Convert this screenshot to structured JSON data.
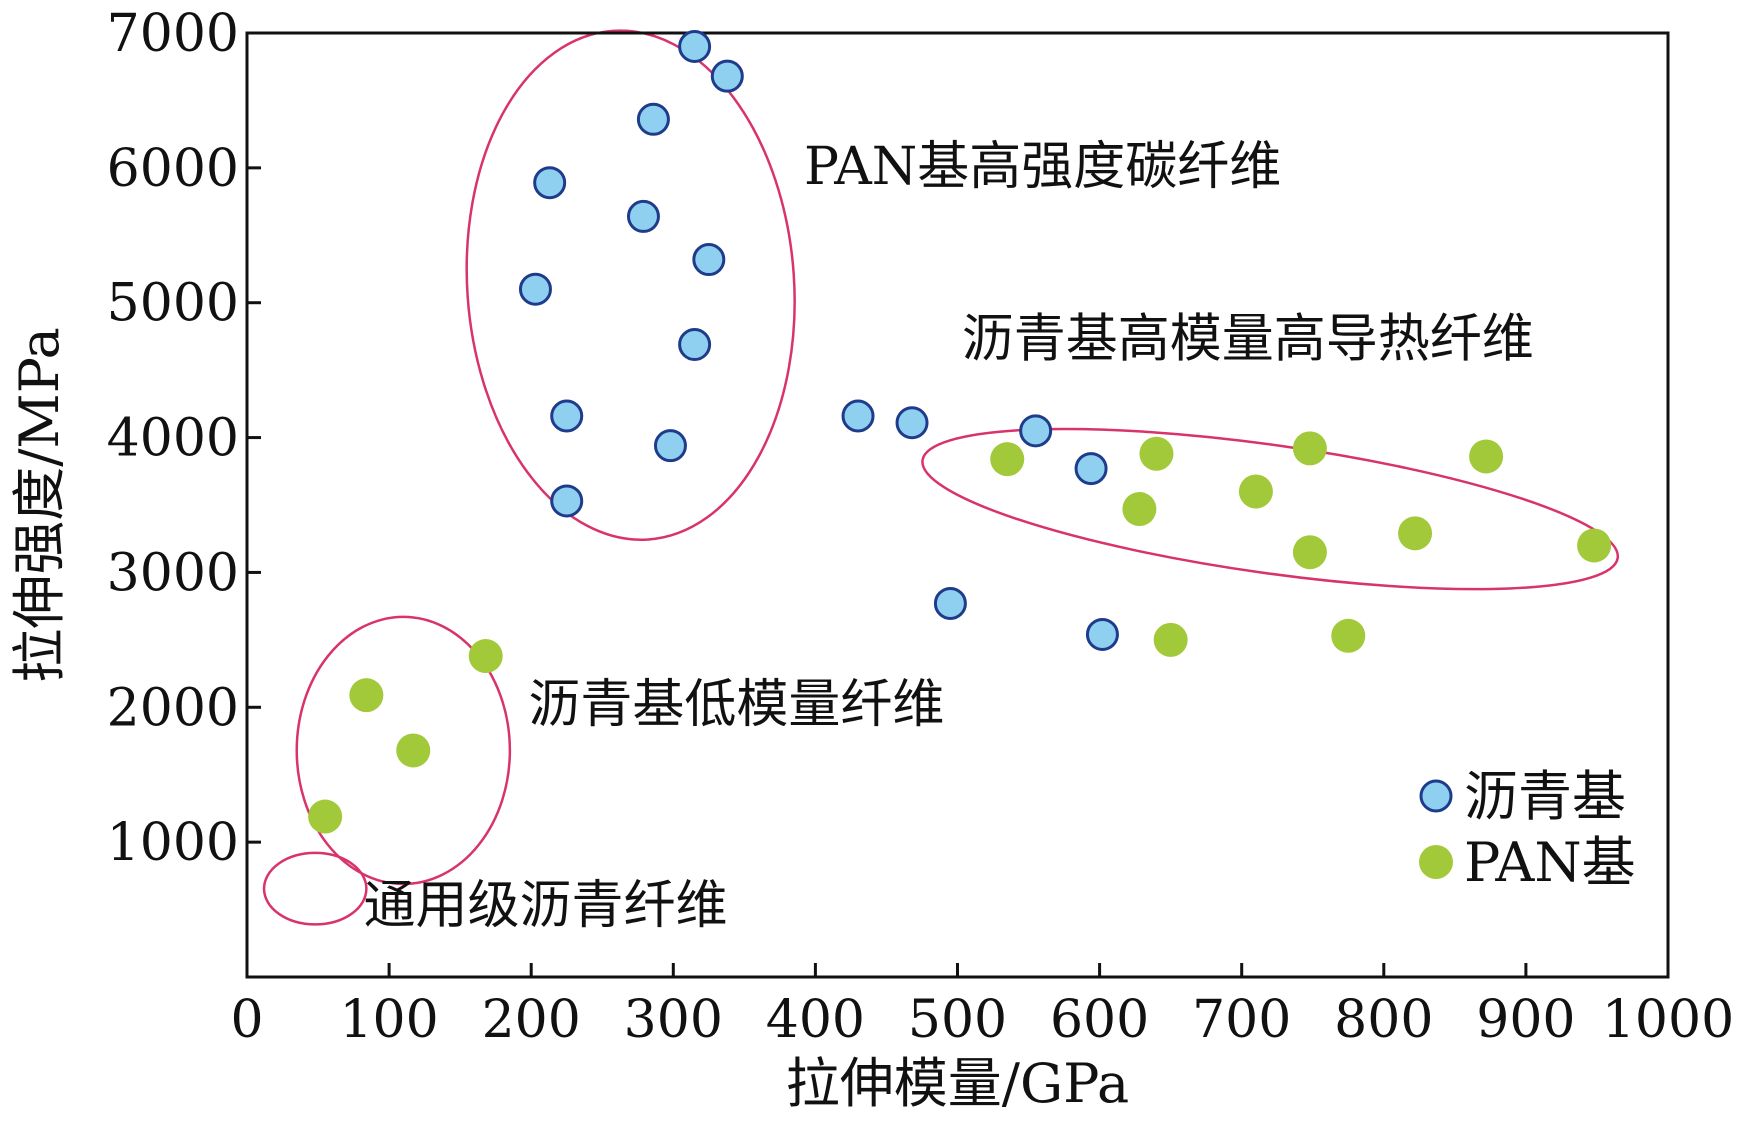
{
  "chart_data": {
    "type": "scatter",
    "xlabel": "拉伸模量/GPa",
    "ylabel": "拉伸强度/MPa",
    "xlim": [
      0,
      1000
    ],
    "ylim": [
      0,
      7000
    ],
    "xticks": [
      "0",
      "100",
      "200",
      "300",
      "400",
      "500",
      "600",
      "700",
      "800",
      "900",
      "1000"
    ],
    "yticks": [
      "1000",
      "2000",
      "3000",
      "4000",
      "5000",
      "6000",
      "7000"
    ],
    "grid": false,
    "legend_position": "bottom-right",
    "series": [
      {
        "name": "沥青基",
        "color": "#8fd0f0",
        "edge_color": "#1f3c8c",
        "marker": "circle-outlined",
        "points": [
          {
            "x": 315,
            "y": 6900
          },
          {
            "x": 338,
            "y": 6680
          },
          {
            "x": 286,
            "y": 6360
          },
          {
            "x": 213,
            "y": 5890
          },
          {
            "x": 279,
            "y": 5640
          },
          {
            "x": 325,
            "y": 5320
          },
          {
            "x": 203,
            "y": 5100
          },
          {
            "x": 315,
            "y": 4690
          },
          {
            "x": 225,
            "y": 4160
          },
          {
            "x": 298,
            "y": 3940
          },
          {
            "x": 225,
            "y": 3530
          },
          {
            "x": 430,
            "y": 4160
          },
          {
            "x": 468,
            "y": 4110
          },
          {
            "x": 555,
            "y": 4050
          },
          {
            "x": 594,
            "y": 3770
          },
          {
            "x": 495,
            "y": 2770
          },
          {
            "x": 602,
            "y": 2540
          }
        ]
      },
      {
        "name": "PAN基",
        "color": "#a2c93a",
        "edge_color": "#a2c93a",
        "marker": "circle",
        "points": [
          {
            "x": 55,
            "y": 1190
          },
          {
            "x": 84,
            "y": 2090
          },
          {
            "x": 117,
            "y": 1680
          },
          {
            "x": 168,
            "y": 2380
          },
          {
            "x": 535,
            "y": 3840
          },
          {
            "x": 640,
            "y": 3880
          },
          {
            "x": 628,
            "y": 3470
          },
          {
            "x": 710,
            "y": 3600
          },
          {
            "x": 748,
            "y": 3920
          },
          {
            "x": 748,
            "y": 3150
          },
          {
            "x": 822,
            "y": 3290
          },
          {
            "x": 872,
            "y": 3860
          },
          {
            "x": 948,
            "y": 3200
          },
          {
            "x": 650,
            "y": 2500
          },
          {
            "x": 775,
            "y": 2530
          }
        ]
      }
    ],
    "regions": [
      {
        "label": "PAN基高强度碳纤维",
        "cx": 270,
        "cy": 5130,
        "rx": 115,
        "ry": 1890,
        "rotate": -4
      },
      {
        "label": "沥青基高模量高导热纤维",
        "cx": 720,
        "cy": 3470,
        "rx": 247,
        "ry": 475,
        "rotate": 8
      },
      {
        "label": "沥青基低模量纤维",
        "cx": 110,
        "cy": 1680,
        "rx": 75,
        "ry": 990,
        "rotate": 0
      },
      {
        "label": "通用级沥青纤维",
        "cx": 48,
        "cy": 655,
        "rx": 36,
        "ry": 265,
        "rotate": 0
      }
    ],
    "annotations": [
      {
        "text": "PAN基高强度碳纤维",
        "x": 392,
        "y": 5880
      },
      {
        "text": "沥青基高模量高导热纤维",
        "x": 503,
        "y": 4600
      },
      {
        "text": "沥青基低模量纤维",
        "x": 198,
        "y": 1890
      },
      {
        "text": "通用级沥青纤维",
        "x": 82,
        "y": 400
      }
    ],
    "region_color": "#d8336a"
  }
}
